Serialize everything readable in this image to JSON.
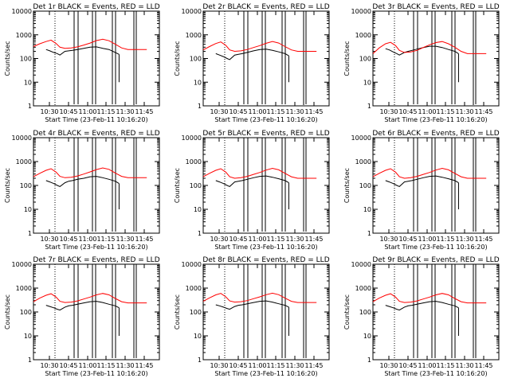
{
  "chart_data": [
    {
      "type": "line",
      "title": "Det 1r BLACK = Events, RED = LLD",
      "xlabel": "Start Time (23-Feb-11 10:16:20)",
      "ylabel": "Counts/sec",
      "x_ticks": [
        "10:30",
        "10:45",
        "11:00",
        "11:15",
        "11:30",
        "11:45"
      ],
      "y_ticks": [
        "1",
        "10",
        "100",
        "1000",
        "10000"
      ],
      "yscale": "log",
      "ylim": [
        1,
        10000
      ],
      "xlim_minutes_after_start": [
        0,
        100
      ],
      "series": [
        {
          "name": "Events",
          "color": "#000000",
          "x": [
            10,
            13,
            16,
            19,
            21,
            25,
            28,
            31,
            35,
            40,
            45,
            50,
            55,
            60,
            65,
            68
          ],
          "y": [
            240,
            210,
            180,
            160,
            140,
            200,
            210,
            220,
            240,
            270,
            300,
            310,
            270,
            240,
            180,
            150
          ]
        },
        {
          "name": "LLD",
          "color": "#ff0000",
          "x": [
            0,
            5,
            10,
            14,
            18,
            21,
            25,
            30,
            35,
            40,
            45,
            50,
            55,
            60,
            65,
            70,
            75,
            80,
            85,
            90
          ],
          "y": [
            320,
            420,
            520,
            600,
            430,
            300,
            270,
            280,
            310,
            370,
            450,
            570,
            650,
            560,
            400,
            280,
            240,
            240,
            240,
            240
          ]
        }
      ]
    },
    {
      "type": "line",
      "title": "Det 2r BLACK = Events, RED = LLD",
      "xlabel": "Start Time (23-Feb-11 10:16:20)",
      "ylabel": "Counts/sec",
      "x_ticks": [
        "10:30",
        "10:45",
        "11:00",
        "11:15",
        "11:30",
        "11:45"
      ],
      "y_ticks": [
        "1",
        "10",
        "100",
        "1000",
        "10000"
      ],
      "yscale": "log",
      "ylim": [
        1,
        10000
      ],
      "xlim_minutes_after_start": [
        0,
        100
      ],
      "series": [
        {
          "name": "Events",
          "color": "#000000",
          "x": [
            10,
            13,
            16,
            19,
            21,
            25,
            28,
            31,
            35,
            40,
            45,
            50,
            55,
            60,
            65,
            68
          ],
          "y": [
            160,
            140,
            120,
            100,
            90,
            140,
            150,
            160,
            180,
            210,
            240,
            250,
            220,
            190,
            160,
            130
          ]
        },
        {
          "name": "LLD",
          "color": "#ff0000",
          "x": [
            0,
            5,
            10,
            14,
            18,
            21,
            25,
            30,
            35,
            40,
            45,
            50,
            55,
            60,
            65,
            70,
            75,
            80,
            85,
            90
          ],
          "y": [
            230,
            320,
            430,
            500,
            360,
            230,
            200,
            210,
            240,
            290,
            350,
            440,
            520,
            450,
            320,
            230,
            200,
            200,
            200,
            200
          ]
        }
      ]
    },
    {
      "type": "line",
      "title": "Det 3r BLACK = Events, RED = LLD",
      "xlabel": "Start Time (23-Feb-11 10:16:20)",
      "ylabel": "Counts/sec",
      "x_ticks": [
        "10:30",
        "10:45",
        "11:00",
        "11:15",
        "11:30",
        "11:45"
      ],
      "y_ticks": [
        "1",
        "10",
        "100",
        "1000",
        "10000"
      ],
      "yscale": "log",
      "ylim": [
        1,
        10000
      ],
      "xlim_minutes_after_start": [
        0,
        100
      ],
      "series": [
        {
          "name": "Events",
          "color": "#000000",
          "x": [
            10,
            13,
            16,
            19,
            21,
            25,
            28,
            31,
            35,
            40,
            45,
            50,
            55,
            60,
            65,
            68
          ],
          "y": [
            260,
            230,
            190,
            160,
            140,
            180,
            200,
            220,
            250,
            290,
            330,
            330,
            290,
            240,
            200,
            160
          ]
        },
        {
          "name": "LLD",
          "color": "#ff0000",
          "x": [
            0,
            5,
            10,
            14,
            18,
            21,
            25,
            30,
            35,
            40,
            45,
            50,
            55,
            60,
            65,
            70,
            75,
            80,
            85,
            90
          ],
          "y": [
            160,
            280,
            420,
            480,
            350,
            220,
            180,
            190,
            220,
            290,
            380,
            470,
            520,
            420,
            300,
            200,
            160,
            160,
            160,
            160
          ]
        }
      ]
    },
    {
      "type": "line",
      "title": "Det 4r BLACK = Events, RED = LLD",
      "xlabel": "Start Time (23-Feb-11 10:16:20)",
      "ylabel": "Counts/sec",
      "x_ticks": [
        "10:30",
        "10:45",
        "11:00",
        "11:15",
        "11:30",
        "11:45"
      ],
      "y_ticks": [
        "1",
        "10",
        "100",
        "1000",
        "10000"
      ],
      "yscale": "log",
      "ylim": [
        1,
        10000
      ],
      "xlim_minutes_after_start": [
        0,
        100
      ],
      "series": [
        {
          "name": "Events",
          "color": "#000000",
          "x": [
            10,
            13,
            16,
            19,
            21,
            25,
            28,
            31,
            35,
            40,
            45,
            50,
            55,
            60,
            65,
            68
          ],
          "y": [
            160,
            140,
            120,
            100,
            90,
            130,
            150,
            160,
            180,
            200,
            230,
            240,
            210,
            180,
            150,
            120
          ]
        },
        {
          "name": "LLD",
          "color": "#ff0000",
          "x": [
            0,
            5,
            10,
            14,
            18,
            21,
            25,
            30,
            35,
            40,
            45,
            50,
            55,
            60,
            65,
            70,
            75,
            80,
            85,
            90
          ],
          "y": [
            230,
            320,
            430,
            500,
            360,
            240,
            210,
            220,
            250,
            300,
            370,
            460,
            540,
            470,
            330,
            240,
            210,
            210,
            210,
            210
          ]
        }
      ]
    },
    {
      "type": "line",
      "title": "Det 5r BLACK = Events, RED = LLD",
      "xlabel": "Start Time (23-Feb-11 10:16:20)",
      "ylabel": "Counts/sec",
      "x_ticks": [
        "10:30",
        "10:45",
        "11:00",
        "11:15",
        "11:30",
        "11:45"
      ],
      "y_ticks": [
        "1",
        "10",
        "100",
        "1000",
        "10000"
      ],
      "yscale": "log",
      "ylim": [
        1,
        10000
      ],
      "xlim_minutes_after_start": [
        0,
        100
      ],
      "series": [
        {
          "name": "Events",
          "color": "#000000",
          "x": [
            10,
            13,
            16,
            19,
            21,
            25,
            28,
            31,
            35,
            40,
            45,
            50,
            55,
            60,
            65,
            68
          ],
          "y": [
            160,
            140,
            120,
            100,
            90,
            140,
            150,
            160,
            180,
            210,
            240,
            250,
            220,
            190,
            160,
            130
          ]
        },
        {
          "name": "LLD",
          "color": "#ff0000",
          "x": [
            0,
            5,
            10,
            14,
            18,
            21,
            25,
            30,
            35,
            40,
            45,
            50,
            55,
            60,
            65,
            70,
            75,
            80,
            85,
            90
          ],
          "y": [
            230,
            320,
            430,
            500,
            360,
            230,
            200,
            210,
            240,
            290,
            350,
            440,
            520,
            450,
            320,
            230,
            200,
            200,
            200,
            200
          ]
        }
      ]
    },
    {
      "type": "line",
      "title": "Det 6r BLACK = Events, RED = LLD",
      "xlabel": "Start Time (23-Feb-11 10:16:20)",
      "ylabel": "Counts/sec",
      "x_ticks": [
        "10:30",
        "10:45",
        "11:00",
        "11:15",
        "11:30",
        "11:45"
      ],
      "y_ticks": [
        "1",
        "10",
        "100",
        "1000",
        "10000"
      ],
      "yscale": "log",
      "ylim": [
        1,
        10000
      ],
      "xlim_minutes_after_start": [
        0,
        100
      ],
      "series": [
        {
          "name": "Events",
          "color": "#000000",
          "x": [
            10,
            13,
            16,
            19,
            21,
            25,
            28,
            31,
            35,
            40,
            45,
            50,
            55,
            60,
            65,
            68
          ],
          "y": [
            160,
            140,
            120,
            100,
            90,
            140,
            150,
            160,
            180,
            210,
            240,
            250,
            220,
            190,
            160,
            130
          ]
        },
        {
          "name": "LLD",
          "color": "#ff0000",
          "x": [
            0,
            5,
            10,
            14,
            18,
            21,
            25,
            30,
            35,
            40,
            45,
            50,
            55,
            60,
            65,
            70,
            75,
            80,
            85,
            90
          ],
          "y": [
            230,
            320,
            430,
            500,
            360,
            230,
            200,
            210,
            240,
            290,
            350,
            440,
            520,
            450,
            320,
            230,
            200,
            200,
            200,
            200
          ]
        }
      ]
    },
    {
      "type": "line",
      "title": "Det 7r BLACK = Events, RED = LLD",
      "xlabel": "Start Time (23-Feb-11 10:16:20)",
      "ylabel": "Counts/sec",
      "x_ticks": [
        "10:30",
        "10:45",
        "11:00",
        "11:15",
        "11:30",
        "11:45"
      ],
      "y_ticks": [
        "1",
        "10",
        "100",
        "1000",
        "10000"
      ],
      "yscale": "log",
      "ylim": [
        1,
        10000
      ],
      "xlim_minutes_after_start": [
        0,
        100
      ],
      "series": [
        {
          "name": "Events",
          "color": "#000000",
          "x": [
            10,
            13,
            16,
            19,
            21,
            25,
            28,
            31,
            35,
            40,
            45,
            50,
            55,
            60,
            65,
            68
          ],
          "y": [
            190,
            170,
            150,
            130,
            120,
            160,
            180,
            190,
            210,
            240,
            270,
            280,
            250,
            210,
            180,
            150
          ]
        },
        {
          "name": "LLD",
          "color": "#ff0000",
          "x": [
            0,
            5,
            10,
            14,
            18,
            21,
            25,
            30,
            35,
            40,
            45,
            50,
            55,
            60,
            65,
            70,
            75,
            80,
            85,
            90
          ],
          "y": [
            270,
            380,
            500,
            580,
            420,
            280,
            250,
            260,
            290,
            350,
            420,
            520,
            600,
            520,
            370,
            270,
            240,
            240,
            240,
            240
          ]
        }
      ]
    },
    {
      "type": "line",
      "title": "Det 8r BLACK = Events, RED = LLD",
      "xlabel": "Start Time (23-Feb-11 10:16:20)",
      "ylabel": "Counts/sec",
      "x_ticks": [
        "10:30",
        "10:45",
        "11:00",
        "11:15",
        "11:30",
        "11:45"
      ],
      "y_ticks": [
        "1",
        "10",
        "100",
        "1000",
        "10000"
      ],
      "yscale": "log",
      "ylim": [
        1,
        10000
      ],
      "xlim_minutes_after_start": [
        0,
        100
      ],
      "series": [
        {
          "name": "Events",
          "color": "#000000",
          "x": [
            10,
            13,
            16,
            19,
            21,
            25,
            28,
            31,
            35,
            40,
            45,
            50,
            55,
            60,
            65,
            68
          ],
          "y": [
            200,
            180,
            160,
            140,
            130,
            170,
            190,
            200,
            220,
            250,
            280,
            290,
            260,
            220,
            190,
            160
          ]
        },
        {
          "name": "LLD",
          "color": "#ff0000",
          "x": [
            0,
            5,
            10,
            14,
            18,
            21,
            25,
            30,
            35,
            40,
            45,
            50,
            55,
            60,
            65,
            70,
            75,
            80,
            85,
            90
          ],
          "y": [
            280,
            390,
            520,
            600,
            430,
            290,
            260,
            270,
            300,
            360,
            430,
            530,
            610,
            530,
            380,
            280,
            250,
            250,
            250,
            250
          ]
        }
      ]
    },
    {
      "type": "line",
      "title": "Det 9r BLACK = Events, RED = LLD",
      "xlabel": "Start Time (23-Feb-11 10:16:20)",
      "ylabel": "Counts/sec",
      "x_ticks": [
        "10:30",
        "10:45",
        "11:00",
        "11:15",
        "11:30",
        "11:45"
      ],
      "y_ticks": [
        "1",
        "10",
        "100",
        "1000",
        "10000"
      ],
      "yscale": "log",
      "ylim": [
        1,
        10000
      ],
      "xlim_minutes_after_start": [
        0,
        100
      ],
      "series": [
        {
          "name": "Events",
          "color": "#000000",
          "x": [
            10,
            13,
            16,
            19,
            21,
            25,
            28,
            31,
            35,
            40,
            45,
            50,
            55,
            60,
            65,
            68
          ],
          "y": [
            190,
            170,
            150,
            130,
            120,
            160,
            180,
            190,
            210,
            240,
            270,
            280,
            250,
            210,
            180,
            150
          ]
        },
        {
          "name": "LLD",
          "color": "#ff0000",
          "x": [
            0,
            5,
            10,
            14,
            18,
            21,
            25,
            30,
            35,
            40,
            45,
            50,
            55,
            60,
            65,
            70,
            75,
            80,
            85,
            90
          ],
          "y": [
            270,
            380,
            500,
            580,
            420,
            280,
            250,
            260,
            290,
            350,
            420,
            520,
            600,
            520,
            370,
            270,
            240,
            240,
            240,
            240
          ]
        }
      ]
    }
  ]
}
